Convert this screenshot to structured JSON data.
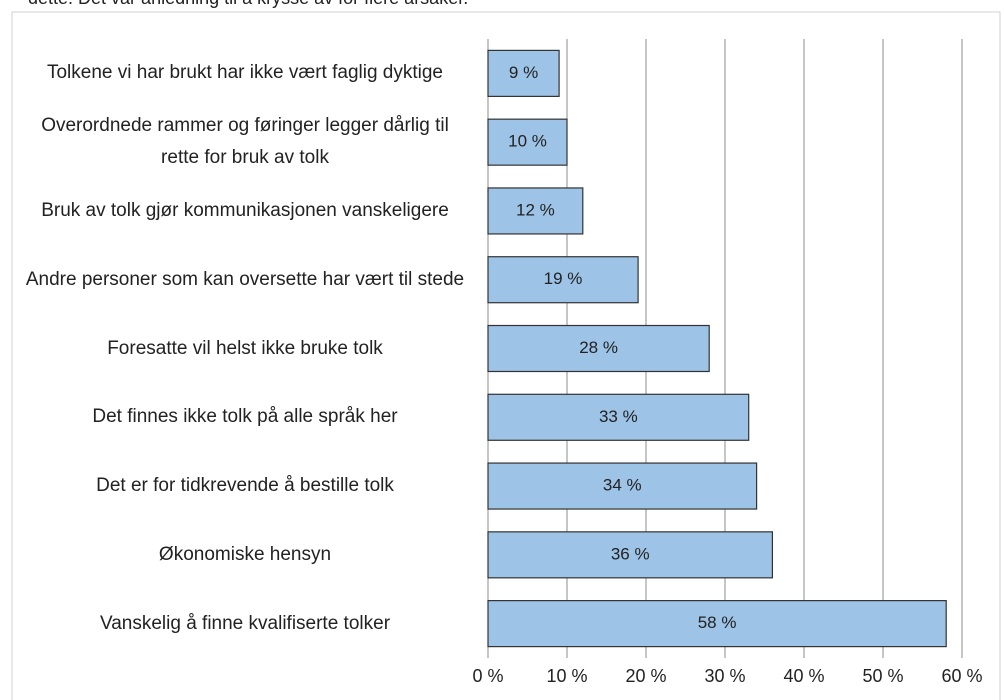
{
  "chart_data": {
    "type": "barh",
    "caption": "dette. Det var anledning til å krysse av for flere årsaker.",
    "categories": [
      "Tolkene vi har brukt har ikke vært faglig dyktige",
      "Overordnede rammer og føringer legger dårlig til rette for bruk av tolk",
      "Bruk av tolk gjør kommunikasjonen vanskeligere",
      "Andre personer som kan oversette har vært til stede",
      "Foresatte vil helst ikke bruke tolk",
      "Det finnes ikke tolk på alle språk her",
      "Det er for tidkrevende å bestille tolk",
      "Økonomiske hensyn",
      "Vanskelig å finne kvalifiserte tolker"
    ],
    "values": [
      9,
      10,
      12,
      19,
      28,
      33,
      34,
      36,
      58
    ],
    "value_labels": [
      "9 %",
      "10 %",
      "12 %",
      "19 %",
      "28 %",
      "33 %",
      "34 %",
      "36 %",
      "58 %"
    ],
    "color": "#9dc3e6",
    "xlim": [
      0,
      60
    ],
    "xticks": [
      {
        "value": 0,
        "label": "0 %"
      },
      {
        "value": 10,
        "label": "10 %"
      },
      {
        "value": 20,
        "label": "20 %"
      },
      {
        "value": 30,
        "label": "30 %"
      },
      {
        "value": 40,
        "label": "40 %"
      },
      {
        "value": 50,
        "label": "50 %"
      },
      {
        "value": 60,
        "label": "60 %"
      }
    ],
    "grid": true
  }
}
